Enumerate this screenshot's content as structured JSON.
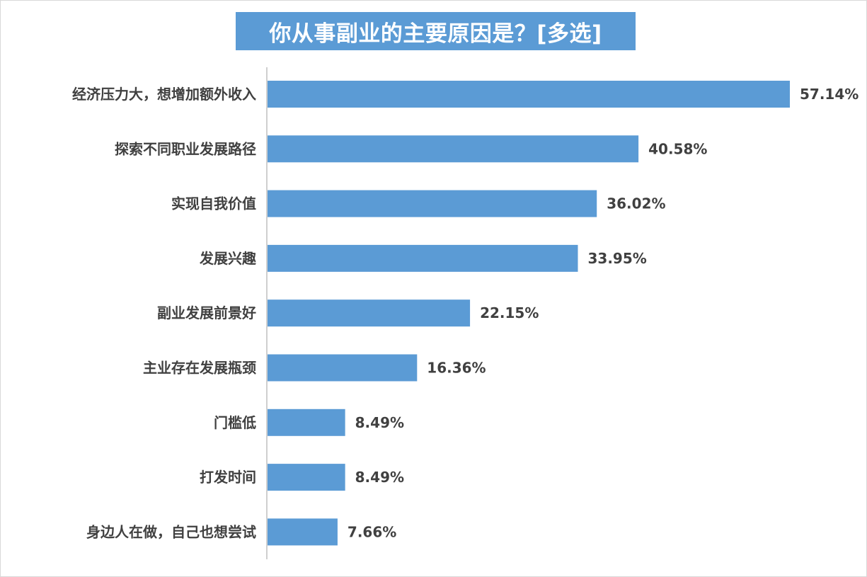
{
  "chart_data": {
    "type": "bar",
    "orientation": "horizontal",
    "title": "你从事副业的主要原因是？[多选]",
    "xlabel": "",
    "ylabel": "",
    "xlim": [
      0,
      60
    ],
    "grid": false,
    "legend": "none",
    "categories": [
      "经济压力大，想增加额外收入",
      "探索不同职业发展路径",
      "实现自我价值",
      "发展兴趣",
      "副业发展前景好",
      "主业存在发展瓶颈",
      "门槛低",
      "打发时间",
      "身边人在做，自己也想尝试"
    ],
    "values": [
      57.14,
      40.58,
      36.02,
      33.95,
      22.15,
      16.36,
      8.49,
      8.49,
      7.66
    ],
    "data_labels": [
      "57.14%",
      "40.58%",
      "36.02%",
      "33.95%",
      "22.15%",
      "16.36%",
      "8.49%",
      "8.49%",
      "7.66%"
    ],
    "colors": {
      "bar": "#5b9bd5",
      "title_bg": "#5b9bd5",
      "title_text": "#ffffff",
      "label_text": "#404040",
      "axis": "#bfbfbf"
    }
  }
}
